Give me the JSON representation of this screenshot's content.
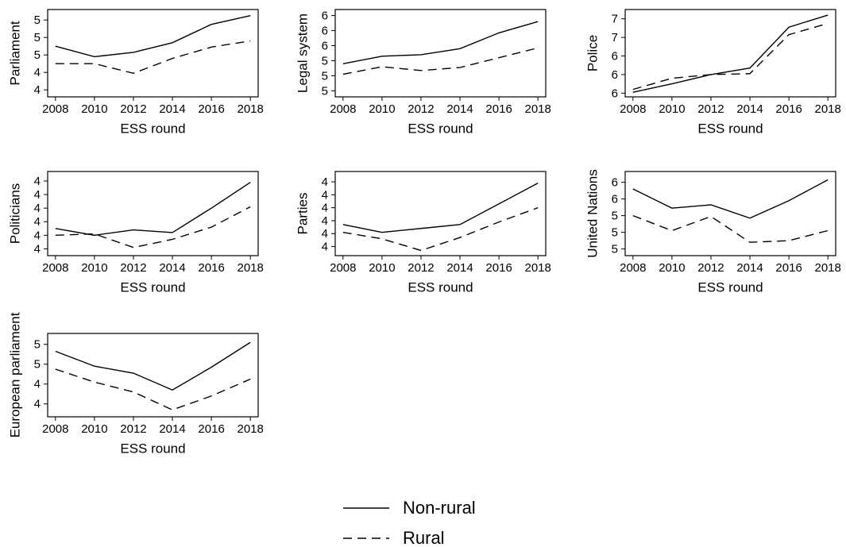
{
  "chart_data": [
    {
      "type": "line",
      "ylabel": "Parliament",
      "xlabel": "ESS round",
      "x": [
        2008,
        2010,
        2012,
        2014,
        2016,
        2018
      ],
      "xlim": [
        2007.6,
        2018.4
      ],
      "xticks": [
        2008,
        2010,
        2012,
        2014,
        2016,
        2018
      ],
      "ylim": [
        4.12,
        5.12
      ],
      "yticks": [
        {
          "value": 4.2,
          "label": "4"
        },
        {
          "value": 4.4,
          "label": "4"
        },
        {
          "value": 4.6,
          "label": "5"
        },
        {
          "value": 4.8,
          "label": "5"
        },
        {
          "value": 5.0,
          "label": "5"
        }
      ],
      "series": [
        {
          "name": "Non-rural",
          "color": "#000000",
          "style": "solid",
          "values": [
            4.7,
            4.58,
            4.63,
            4.74,
            4.95,
            5.05
          ]
        },
        {
          "name": "Rural",
          "color": "#000000",
          "style": "dashed",
          "values": [
            4.5,
            4.5,
            4.39,
            4.56,
            4.69,
            4.76
          ]
        }
      ]
    },
    {
      "type": "line",
      "ylabel": "Legal system",
      "xlabel": "ESS round",
      "x": [
        2008,
        2010,
        2012,
        2014,
        2016,
        2018
      ],
      "xlim": [
        2007.6,
        2018.4
      ],
      "xticks": [
        2008,
        2010,
        2012,
        2014,
        2016,
        2018
      ],
      "ylim": [
        4.92,
        6.08
      ],
      "yticks": [
        {
          "value": 5.0,
          "label": "5"
        },
        {
          "value": 5.2,
          "label": "5"
        },
        {
          "value": 5.4,
          "label": "5"
        },
        {
          "value": 5.6,
          "label": "6"
        },
        {
          "value": 5.8,
          "label": "6"
        },
        {
          "value": 6.0,
          "label": "6"
        }
      ],
      "series": [
        {
          "name": "Non-rural",
          "color": "#000000",
          "style": "solid",
          "values": [
            5.36,
            5.46,
            5.48,
            5.56,
            5.77,
            5.92
          ]
        },
        {
          "name": "Rural",
          "color": "#000000",
          "style": "dashed",
          "values": [
            5.22,
            5.32,
            5.27,
            5.31,
            5.44,
            5.57
          ]
        }
      ]
    },
    {
      "type": "line",
      "ylabel": "Police",
      "xlabel": "ESS round",
      "x": [
        2008,
        2010,
        2012,
        2014,
        2016,
        2018
      ],
      "xlim": [
        2007.6,
        2018.4
      ],
      "xticks": [
        2008,
        2010,
        2012,
        2014,
        2016,
        2018
      ],
      "ylim": [
        5.96,
        6.9
      ],
      "yticks": [
        {
          "value": 6.0,
          "label": "6"
        },
        {
          "value": 6.2,
          "label": "6"
        },
        {
          "value": 6.4,
          "label": "6"
        },
        {
          "value": 6.6,
          "label": "7"
        },
        {
          "value": 6.8,
          "label": "7"
        }
      ],
      "series": [
        {
          "name": "Non-rural",
          "color": "#000000",
          "style": "solid",
          "values": [
            6.01,
            6.1,
            6.2,
            6.27,
            6.71,
            6.84
          ]
        },
        {
          "name": "Rural",
          "color": "#000000",
          "style": "dashed",
          "values": [
            6.04,
            6.16,
            6.2,
            6.21,
            6.63,
            6.75
          ]
        }
      ]
    },
    {
      "type": "line",
      "ylabel": "Politicians",
      "xlabel": "ESS round",
      "x": [
        2008,
        2010,
        2012,
        2014,
        2016,
        2018
      ],
      "xlim": [
        2007.6,
        2018.4
      ],
      "xticks": [
        2008,
        2010,
        2012,
        2014,
        2016,
        2018
      ],
      "ylim": [
        3.45,
        4.07
      ],
      "yticks": [
        {
          "value": 3.5,
          "label": "4"
        },
        {
          "value": 3.6,
          "label": "4"
        },
        {
          "value": 3.7,
          "label": "4"
        },
        {
          "value": 3.8,
          "label": "4"
        },
        {
          "value": 3.9,
          "label": "4"
        },
        {
          "value": 4.0,
          "label": "4"
        }
      ],
      "series": [
        {
          "name": "Non-rural",
          "color": "#000000",
          "style": "solid",
          "values": [
            3.65,
            3.6,
            3.64,
            3.62,
            3.8,
            3.99
          ]
        },
        {
          "name": "Rural",
          "color": "#000000",
          "style": "dashed",
          "values": [
            3.6,
            3.61,
            3.51,
            3.57,
            3.66,
            3.81
          ]
        }
      ]
    },
    {
      "type": "line",
      "ylabel": "Parties",
      "xlabel": "ESS round",
      "x": [
        2008,
        2010,
        2012,
        2014,
        2016,
        2018
      ],
      "xlim": [
        2007.6,
        2018.4
      ],
      "xticks": [
        2008,
        2010,
        2012,
        2014,
        2016,
        2018
      ],
      "ylim": [
        3.43,
        4.08
      ],
      "yticks": [
        {
          "value": 3.5,
          "label": "4"
        },
        {
          "value": 3.6,
          "label": "4"
        },
        {
          "value": 3.7,
          "label": "4"
        },
        {
          "value": 3.8,
          "label": "4"
        },
        {
          "value": 3.9,
          "label": "4"
        },
        {
          "value": 4.0,
          "label": "4"
        }
      ],
      "series": [
        {
          "name": "Non-rural",
          "color": "#000000",
          "style": "solid",
          "values": [
            3.67,
            3.61,
            3.64,
            3.67,
            3.83,
            3.99
          ]
        },
        {
          "name": "Rural",
          "color": "#000000",
          "style": "dashed",
          "values": [
            3.61,
            3.56,
            3.47,
            3.57,
            3.69,
            3.8
          ]
        }
      ]
    },
    {
      "type": "line",
      "ylabel": "United Nations",
      "xlabel": "ESS round",
      "x": [
        2008,
        2010,
        2012,
        2014,
        2016,
        2018
      ],
      "xlim": [
        2007.6,
        2018.4
      ],
      "xticks": [
        2008,
        2010,
        2012,
        2014,
        2016,
        2018
      ],
      "ylim": [
        4.92,
        5.93
      ],
      "yticks": [
        {
          "value": 5.0,
          "label": "5"
        },
        {
          "value": 5.2,
          "label": "5"
        },
        {
          "value": 5.4,
          "label": "5"
        },
        {
          "value": 5.6,
          "label": "6"
        },
        {
          "value": 5.8,
          "label": "6"
        }
      ],
      "series": [
        {
          "name": "Non-rural",
          "color": "#000000",
          "style": "solid",
          "values": [
            5.72,
            5.49,
            5.53,
            5.37,
            5.58,
            5.83
          ]
        },
        {
          "name": "Rural",
          "color": "#000000",
          "style": "dashed",
          "values": [
            5.4,
            5.22,
            5.39,
            5.08,
            5.1,
            5.22
          ]
        }
      ]
    },
    {
      "type": "line",
      "ylabel": "European parliament",
      "xlabel": "ESS round",
      "x": [
        2008,
        2010,
        2012,
        2014,
        2016,
        2018
      ],
      "xlim": [
        2007.6,
        2018.4
      ],
      "xticks": [
        2008,
        2010,
        2012,
        2014,
        2016,
        2018
      ],
      "ylim": [
        4.07,
        4.91
      ],
      "yticks": [
        {
          "value": 4.2,
          "label": "4"
        },
        {
          "value": 4.4,
          "label": "4"
        },
        {
          "value": 4.6,
          "label": "5"
        },
        {
          "value": 4.8,
          "label": "5"
        }
      ],
      "series": [
        {
          "name": "Non-rural",
          "color": "#000000",
          "style": "solid",
          "values": [
            4.73,
            4.58,
            4.51,
            4.34,
            4.57,
            4.82
          ]
        },
        {
          "name": "Rural",
          "color": "#000000",
          "style": "dashed",
          "values": [
            4.55,
            4.42,
            4.32,
            4.14,
            4.28,
            4.45
          ]
        }
      ]
    }
  ]
}
